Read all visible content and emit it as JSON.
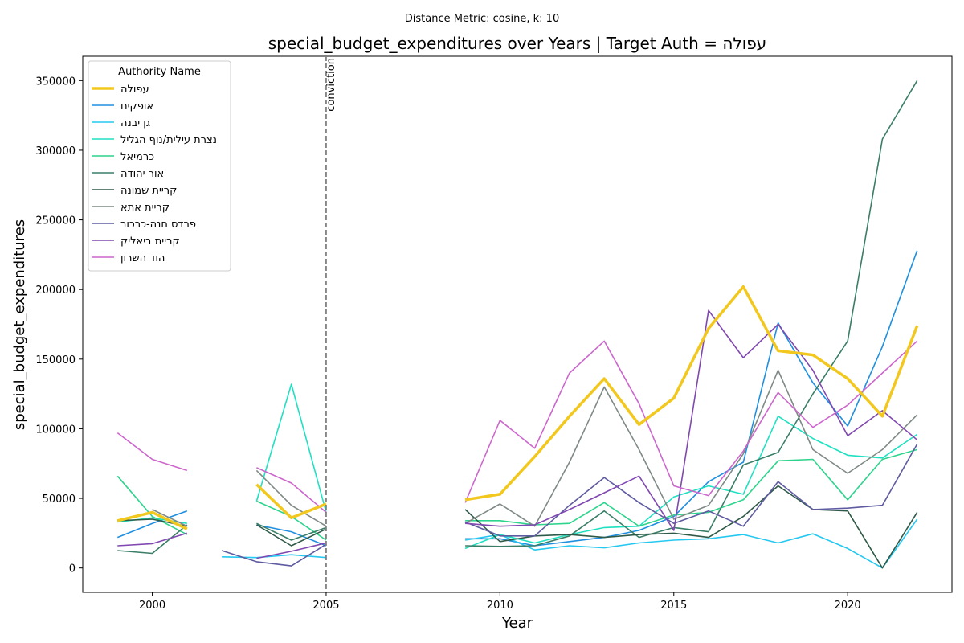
{
  "chart_data": {
    "type": "line",
    "suptitle": "Distance Metric: cosine, k: 10",
    "title": "special_budget_expenditures over Years | Target Auth = עפולה",
    "xlabel": "Year",
    "ylabel": "special_budget_expenditures",
    "xlim": [
      1998,
      2023
    ],
    "ylim": [
      -17500,
      367500
    ],
    "xticks": [
      2000,
      2005,
      2010,
      2015,
      2020
    ],
    "yticks": [
      0,
      50000,
      100000,
      150000,
      200000,
      250000,
      300000,
      350000
    ],
    "grid": false,
    "legend": {
      "title": "Authority Name",
      "placement": "top-left"
    },
    "annotation": {
      "x": 2005,
      "label": "conviction",
      "style": "dashed-vertical",
      "color": "#808080"
    },
    "x": [
      1999,
      2000,
      2001,
      2002,
      2003,
      2004,
      2005,
      2006,
      2007,
      2008,
      2009,
      2010,
      2011,
      2012,
      2013,
      2014,
      2015,
      2016,
      2017,
      2018,
      2019,
      2020,
      2021,
      2022
    ],
    "series": [
      {
        "name": "עפולה",
        "color": "#f2c81e",
        "width": 3.5,
        "values": [
          34000,
          40000,
          28000,
          null,
          60000,
          36000,
          46000,
          null,
          null,
          null,
          49000,
          53000,
          80000,
          109000,
          136000,
          103000,
          122000,
          172000,
          202000,
          156000,
          153000,
          136000,
          109000,
          174000
        ]
      },
      {
        "name": "אופקים",
        "color": "#1f8fe0",
        "width": 1.6,
        "values": [
          22000,
          32000,
          41000,
          null,
          31000,
          26000,
          16000,
          null,
          null,
          null,
          21000,
          21000,
          16000,
          19000,
          22000,
          27000,
          37000,
          62000,
          76000,
          176000,
          133000,
          102000,
          159000,
          228000
        ]
      },
      {
        "name": "גן יבנה",
        "color": "#25c8f0",
        "width": 1.6,
        "values": [
          null,
          null,
          null,
          8000,
          7500,
          9500,
          7500,
          null,
          null,
          null,
          20000,
          24000,
          13000,
          16000,
          14500,
          18000,
          20000,
          21000,
          24000,
          18000,
          24500,
          14000,
          0,
          35000
        ]
      },
      {
        "name": "נצרת עילית/נוף הגליל",
        "color": "#1fe0c0",
        "width": 1.6,
        "values": [
          33000,
          36000,
          32000,
          null,
          48000,
          132000,
          40000,
          null,
          null,
          null,
          14000,
          24000,
          18000,
          24000,
          29000,
          30000,
          51000,
          59000,
          53000,
          109000,
          93000,
          81000,
          79000,
          96000
        ]
      },
      {
        "name": "כרמיאל",
        "color": "#2dd48c",
        "width": 1.6,
        "values": [
          66000,
          37000,
          24000,
          null,
          48000,
          37000,
          20000,
          null,
          null,
          null,
          34000,
          34000,
          31000,
          32000,
          47000,
          30000,
          38000,
          40000,
          49000,
          77000,
          78000,
          49000,
          78000,
          85000
        ]
      },
      {
        "name": "אור יהודה",
        "color": "#3a7e68",
        "width": 1.6,
        "values": [
          12500,
          10500,
          31000,
          null,
          32000,
          20000,
          29000,
          null,
          null,
          null,
          16000,
          15500,
          16000,
          23000,
          41000,
          22000,
          29000,
          26000,
          74000,
          83000,
          125000,
          163000,
          308000,
          350000
        ]
      },
      {
        "name": "קריית שמונה",
        "color": "#2f5a48",
        "width": 1.6,
        "values": [
          34000,
          35000,
          30000,
          null,
          31000,
          16000,
          28000,
          null,
          null,
          null,
          42000,
          19000,
          23000,
          24000,
          22000,
          24000,
          25000,
          22000,
          37000,
          59000,
          42000,
          41000,
          0,
          40000
        ]
      },
      {
        "name": "קריית אתא",
        "color": "#7f8a84",
        "width": 1.6,
        "values": [
          null,
          42000,
          30000,
          null,
          70000,
          45000,
          30000,
          null,
          null,
          null,
          32000,
          46000,
          30000,
          76000,
          130000,
          85000,
          35000,
          45000,
          82000,
          142000,
          85000,
          68000,
          85000,
          110000
        ]
      },
      {
        "name": "פרדס חנה-כרכור",
        "color": "#5e5ba0",
        "width": 1.6,
        "values": [
          null,
          null,
          null,
          12500,
          4500,
          1500,
          17000,
          null,
          null,
          null,
          33000,
          23000,
          23000,
          45000,
          65000,
          47000,
          32000,
          41000,
          30000,
          62000,
          42000,
          43000,
          45000,
          89000
        ]
      },
      {
        "name": "קריית ביאליק",
        "color": "#8048b0",
        "width": 1.6,
        "values": [
          16000,
          17500,
          25000,
          null,
          7000,
          12000,
          18000,
          null,
          null,
          null,
          32000,
          30000,
          31000,
          42000,
          54000,
          66000,
          27000,
          185000,
          151000,
          175000,
          142000,
          95000,
          113000,
          92000
        ]
      },
      {
        "name": "הוד השרון",
        "color": "#cc66cc",
        "width": 1.6,
        "values": [
          97000,
          78000,
          70000,
          null,
          72000,
          61000,
          40000,
          null,
          null,
          null,
          47000,
          106000,
          86000,
          140000,
          163000,
          118000,
          59000,
          52000,
          84000,
          126000,
          101000,
          117000,
          140000,
          163000
        ]
      }
    ]
  }
}
